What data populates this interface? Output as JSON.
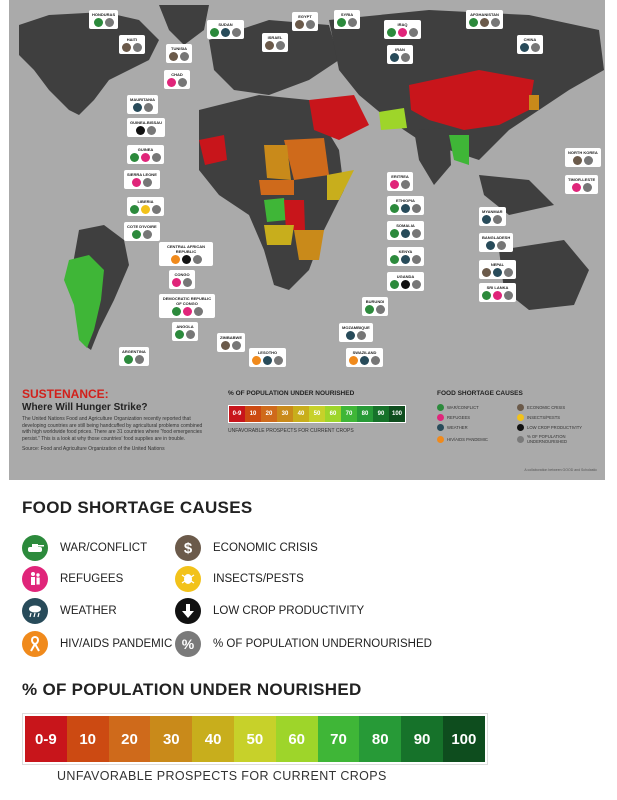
{
  "title": {
    "heading": "SUSTENANCE:",
    "subheading": "Where Will Hunger Strike?",
    "body": "The United Nations Food and Agriculture Organization recently reported that developing countries are still being handcuffed by agricultural problems combined with high worldwide food prices. There are 31 countries where “food emergencies persist.” This is a look at why those countries’ food supplies are in trouble.",
    "source": "Source: Food and Agriculture Organization of the United Nations"
  },
  "credit": "A collaboration between GOOD and Scholastic",
  "colors": {
    "ocean": "#aaaaaa",
    "land": "#3f3f3f",
    "c0_9": "#c8151b",
    "c10": "#cc4a12",
    "c20": "#cf6a1b",
    "c30": "#c98a1a",
    "c40": "#c8ae1c",
    "c50": "#c7d12a",
    "c60": "#9ed52a",
    "c70": "#3fb637",
    "c80": "#279a37",
    "c90": "#16722a",
    "c100": "#0e4d1e"
  },
  "legend_scale": {
    "title": "% OF POPULATION UNDER NOURISHED",
    "bins": [
      "0-9",
      "10",
      "20",
      "30",
      "40",
      "50",
      "60",
      "70",
      "80",
      "90",
      "100"
    ],
    "bin_colors": [
      "#c8151b",
      "#cc4a12",
      "#cf6a1b",
      "#c98a1a",
      "#c8ae1c",
      "#c7d12a",
      "#9ed52a",
      "#3fb637",
      "#279a37",
      "#16722a",
      "#0e4d1e"
    ],
    "note": "UNFAVORABLE PROSPECTS FOR CURRENT CROPS"
  },
  "causes": {
    "title": "FOOD SHORTAGE CAUSES",
    "items": [
      {
        "label": "WAR/CONFLICT",
        "icon": "tank-icon",
        "color": "#2c8a3c"
      },
      {
        "label": "ECONOMIC CRISIS",
        "icon": "dollar-icon",
        "color": "#6b5a4a"
      },
      {
        "label": "REFUGEES",
        "icon": "refugee-icon",
        "color": "#e0257a"
      },
      {
        "label": "INSECTS/PESTS",
        "icon": "locust-icon",
        "color": "#f2c21a"
      },
      {
        "label": "WEATHER",
        "icon": "rain-cloud-icon",
        "color": "#284b5a"
      },
      {
        "label": "LOW CROP PRODUCTIVITY",
        "icon": "down-arrow-icon",
        "color": "#111111"
      },
      {
        "label": "HIV/AIDS PANDEMIC",
        "icon": "ribbon-icon",
        "color": "#f08a1c"
      },
      {
        "label": "% OF POPULATION UNDERNOURISHED",
        "icon": "percent-icon",
        "color": "#7a7a7a"
      }
    ]
  },
  "countries": [
    {
      "name": "HONDURAS"
    },
    {
      "name": "HAITI"
    },
    {
      "name": "TUNISIA"
    },
    {
      "name": "SUDAN"
    },
    {
      "name": "EGYPT"
    },
    {
      "name": "CHAD"
    },
    {
      "name": "ISRAEL"
    },
    {
      "name": "SYRIA"
    },
    {
      "name": "IRAQ"
    },
    {
      "name": "AFGHANISTAN"
    },
    {
      "name": "IRAN"
    },
    {
      "name": "CHINA"
    },
    {
      "name": "MAURITANIA"
    },
    {
      "name": "GUINEA-BISSAU"
    },
    {
      "name": "GUINEA"
    },
    {
      "name": "SIERRA LEONE"
    },
    {
      "name": "LIBERIA"
    },
    {
      "name": "COTE D'IVOIRE"
    },
    {
      "name": "CENTRAL AFRICAN REPUBLIC"
    },
    {
      "name": "CONGO"
    },
    {
      "name": "DEMOCRATIC REPUBLIC OF CONGO"
    },
    {
      "name": "ANGOLA"
    },
    {
      "name": "ZIMBABWE"
    },
    {
      "name": "LESOTHO"
    },
    {
      "name": "SWAZILAND"
    },
    {
      "name": "MOZAMBIQUE"
    },
    {
      "name": "BURUNDI"
    },
    {
      "name": "UGANDA"
    },
    {
      "name": "KENYA"
    },
    {
      "name": "SOMALIA"
    },
    {
      "name": "ETHIOPIA"
    },
    {
      "name": "ERITREA"
    },
    {
      "name": "NORTH KOREA"
    },
    {
      "name": "TIMOR-LESTE"
    },
    {
      "name": "MYANMAR"
    },
    {
      "name": "BANGLADESH"
    },
    {
      "name": "NEPAL"
    },
    {
      "name": "SRI LANKA"
    },
    {
      "name": "ARGENTINA"
    }
  ]
}
